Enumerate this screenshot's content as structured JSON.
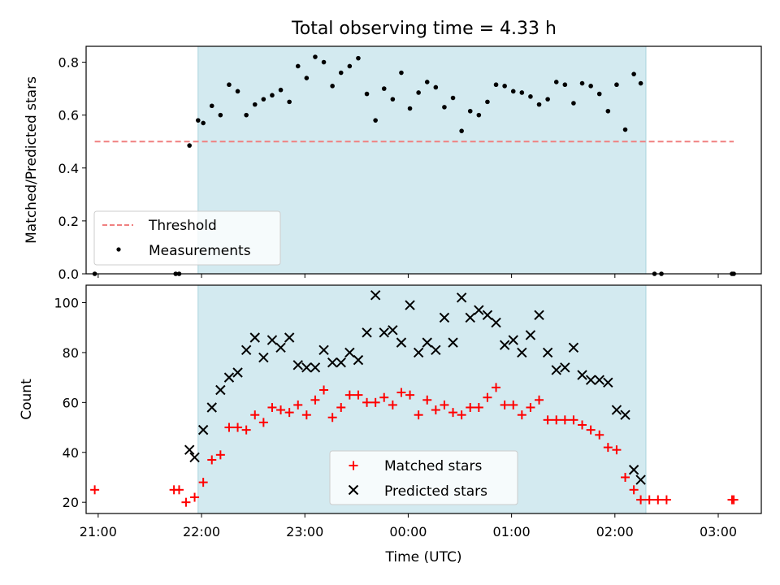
{
  "colors": {
    "band": "#d3eaf0",
    "band_edge": "#a9d3dc",
    "threshold": "#f08080",
    "matched": "#ff0000",
    "predicted": "#000000",
    "measure": "#000000"
  },
  "chart_data": [
    {
      "type": "scatter",
      "title": "Total observing time = 4.33 h",
      "xlabel": "",
      "ylabel": "Matched/Predicted stars",
      "ylim": [
        0,
        0.86
      ],
      "yticks": [
        0.0,
        0.2,
        0.4,
        0.6,
        0.8
      ],
      "ytick_labels": [
        "0.0",
        "0.2",
        "0.4",
        "0.6",
        "0.8"
      ],
      "xlim": [
        "20:53",
        "03:25"
      ],
      "xticks": [
        "21:00",
        "22:00",
        "23:00",
        "00:00",
        "01:00",
        "02:00",
        "03:00"
      ],
      "shaded_interval": [
        "21:58",
        "02:18"
      ],
      "legend": {
        "placement": "lower-left",
        "entries": [
          "Threshold",
          "Measurements"
        ]
      },
      "threshold": {
        "name": "Threshold",
        "y": 0.5,
        "x_range": [
          "20:58",
          "03:09"
        ]
      },
      "series": [
        {
          "name": "Measurements",
          "x": [
            "20:58",
            "21:45",
            "21:47",
            "21:53",
            "21:58",
            "22:01",
            "22:06",
            "22:11",
            "22:16",
            "22:21",
            "22:26",
            "22:31",
            "22:36",
            "22:41",
            "22:46",
            "22:51",
            "22:56",
            "23:01",
            "23:06",
            "23:11",
            "23:16",
            "23:21",
            "23:26",
            "23:31",
            "23:36",
            "23:41",
            "23:46",
            "23:51",
            "23:56",
            "00:01",
            "00:06",
            "00:11",
            "00:16",
            "00:21",
            "00:26",
            "00:31",
            "00:36",
            "00:41",
            "00:46",
            "00:51",
            "00:56",
            "01:01",
            "01:06",
            "01:11",
            "01:16",
            "01:21",
            "01:26",
            "01:31",
            "01:36",
            "01:41",
            "01:46",
            "01:51",
            "01:56",
            "02:01",
            "02:06",
            "02:11",
            "02:15",
            "02:23",
            "02:27",
            "03:08",
            "03:09"
          ],
          "y": [
            0.0,
            0.0,
            0.0,
            0.485,
            0.58,
            0.57,
            0.635,
            0.6,
            0.715,
            0.69,
            0.6,
            0.64,
            0.66,
            0.675,
            0.695,
            0.65,
            0.785,
            0.74,
            0.82,
            0.8,
            0.71,
            0.76,
            0.785,
            0.815,
            0.68,
            0.58,
            0.7,
            0.66,
            0.76,
            0.625,
            0.685,
            0.725,
            0.705,
            0.63,
            0.665,
            0.54,
            0.615,
            0.6,
            0.65,
            0.715,
            0.71,
            0.69,
            0.685,
            0.67,
            0.64,
            0.66,
            0.725,
            0.715,
            0.645,
            0.72,
            0.71,
            0.68,
            0.615,
            0.715,
            0.545,
            0.755,
            0.72,
            0.0,
            0.0,
            0.0,
            0.0
          ]
        }
      ]
    },
    {
      "type": "scatter",
      "xlabel": "Time (UTC)",
      "ylabel": "Count",
      "ylim": [
        15.5,
        107
      ],
      "yticks": [
        20,
        40,
        60,
        80,
        100
      ],
      "ytick_labels": [
        "20",
        "40",
        "60",
        "80",
        "100"
      ],
      "xlim": [
        "20:53",
        "03:25"
      ],
      "xticks": [
        "21:00",
        "22:00",
        "23:00",
        "00:00",
        "01:00",
        "02:00",
        "03:00"
      ],
      "xtick_labels": [
        "21:00",
        "22:00",
        "23:00",
        "00:00",
        "01:00",
        "02:00",
        "03:00"
      ],
      "shaded_interval": [
        "21:58",
        "02:18"
      ],
      "legend": {
        "placement": "lower-center",
        "entries": [
          "Matched stars",
          "Predicted stars"
        ]
      },
      "series": [
        {
          "name": "Matched stars",
          "x": [
            "20:58",
            "21:44",
            "21:47",
            "21:51",
            "21:56",
            "22:01",
            "22:06",
            "22:11",
            "22:16",
            "22:21",
            "22:26",
            "22:31",
            "22:36",
            "22:41",
            "22:46",
            "22:51",
            "22:56",
            "23:01",
            "23:06",
            "23:11",
            "23:16",
            "23:21",
            "23:26",
            "23:31",
            "23:36",
            "23:41",
            "23:46",
            "23:51",
            "23:56",
            "00:01",
            "00:06",
            "00:11",
            "00:16",
            "00:21",
            "00:26",
            "00:31",
            "00:36",
            "00:41",
            "00:46",
            "00:51",
            "00:56",
            "01:01",
            "01:06",
            "01:11",
            "01:16",
            "01:21",
            "01:26",
            "01:31",
            "01:36",
            "01:41",
            "01:46",
            "01:51",
            "01:56",
            "02:01",
            "02:06",
            "02:11",
            "02:15",
            "02:20",
            "02:25",
            "02:30",
            "03:08",
            "03:09"
          ],
          "y": [
            25,
            25,
            25,
            20,
            22,
            28,
            37,
            39,
            50,
            50,
            49,
            55,
            52,
            58,
            57,
            56,
            59,
            55,
            61,
            65,
            54,
            58,
            63,
            63,
            60,
            60,
            62,
            59,
            64,
            63,
            55,
            61,
            57,
            59,
            56,
            55,
            58,
            58,
            62,
            66,
            59,
            59,
            55,
            58,
            61,
            53,
            53,
            53,
            53,
            51,
            49,
            47,
            42,
            41,
            30,
            25,
            21,
            21,
            21,
            21,
            21,
            21
          ]
        },
        {
          "name": "Predicted stars",
          "x": [
            "21:53",
            "21:56",
            "22:01",
            "22:06",
            "22:11",
            "22:16",
            "22:21",
            "22:26",
            "22:31",
            "22:36",
            "22:41",
            "22:46",
            "22:51",
            "22:56",
            "23:01",
            "23:06",
            "23:11",
            "23:16",
            "23:21",
            "23:26",
            "23:31",
            "23:36",
            "23:41",
            "23:46",
            "23:51",
            "23:56",
            "00:01",
            "00:06",
            "00:11",
            "00:16",
            "00:21",
            "00:26",
            "00:31",
            "00:36",
            "00:41",
            "00:46",
            "00:51",
            "00:56",
            "01:01",
            "01:06",
            "01:11",
            "01:16",
            "01:21",
            "01:26",
            "01:31",
            "01:36",
            "01:41",
            "01:46",
            "01:51",
            "01:56",
            "02:01",
            "02:06",
            "02:11",
            "02:15"
          ],
          "y": [
            41,
            38,
            49,
            58,
            65,
            70,
            72,
            81,
            86,
            78,
            85,
            82,
            86,
            75,
            74,
            74,
            81,
            76,
            76,
            80,
            77,
            88,
            103,
            88,
            89,
            84,
            99,
            80,
            84,
            81,
            94,
            84,
            102,
            94,
            97,
            95,
            92,
            83,
            85,
            80,
            87,
            95,
            80,
            73,
            74,
            82,
            71,
            69,
            69,
            68,
            57,
            55,
            33,
            29
          ]
        }
      ]
    }
  ]
}
